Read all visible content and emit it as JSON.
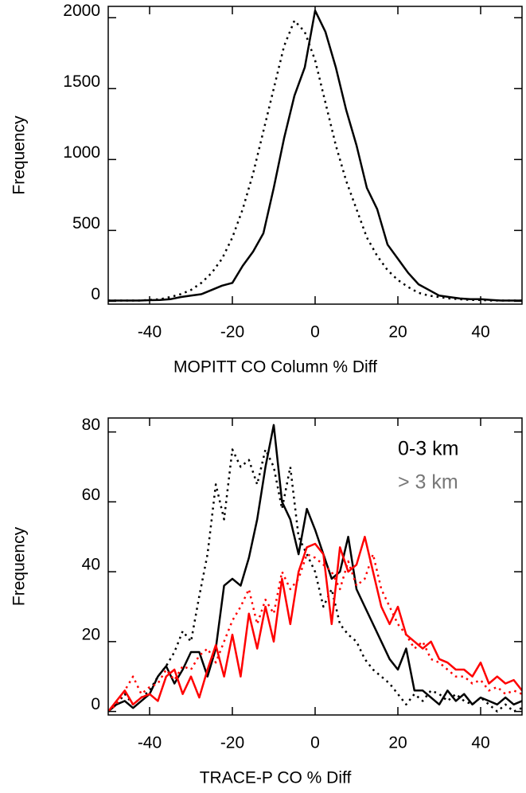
{
  "chart_data": [
    {
      "type": "line",
      "xlabel": "MOPITT CO Column % Diff",
      "ylabel": "Frequency",
      "x": [
        -50,
        -47.5,
        -45,
        -42.5,
        -40,
        -37.5,
        -35,
        -32.5,
        -30,
        -27.5,
        -25,
        -22.5,
        -20,
        -17.5,
        -15,
        -12.5,
        -10,
        -7.5,
        -5,
        -2.5,
        0,
        2.5,
        5,
        7.5,
        10,
        12.5,
        15,
        17.5,
        20,
        22.5,
        25,
        27.5,
        30,
        32.5,
        35,
        37.5,
        40,
        42.5,
        45,
        47.5,
        50
      ],
      "series": [
        {
          "color": "#000000",
          "dash": "solid",
          "values": [
            5,
            5,
            5,
            5,
            8,
            10,
            15,
            30,
            40,
            50,
            80,
            110,
            130,
            250,
            350,
            480,
            800,
            1150,
            1450,
            1650,
            2050,
            1900,
            1650,
            1350,
            1100,
            800,
            650,
            400,
            300,
            200,
            120,
            80,
            40,
            30,
            20,
            15,
            15,
            10,
            5,
            5,
            5
          ]
        },
        {
          "color": "#000000",
          "dash": "dotted",
          "values": [
            5,
            5,
            5,
            5,
            10,
            15,
            30,
            50,
            80,
            130,
            200,
            300,
            450,
            650,
            900,
            1200,
            1500,
            1800,
            1980,
            1900,
            1700,
            1400,
            1100,
            850,
            650,
            450,
            320,
            220,
            150,
            100,
            60,
            40,
            30,
            20,
            15,
            10,
            10,
            5,
            5,
            5,
            5
          ]
        }
      ],
      "xlim": [
        -50,
        50
      ],
      "xticks": [
        -40,
        -20,
        0,
        20,
        40
      ],
      "ylim": [
        -20,
        2080
      ],
      "yticks": [
        0,
        500,
        1000,
        1500,
        2000
      ],
      "grid": false
    },
    {
      "type": "line",
      "xlabel": "TRACE-P CO % Diff",
      "ylabel": "Frequency",
      "annotations": [
        {
          "text": "0-3 km",
          "color": "#000000"
        },
        {
          "text": "> 3 km",
          "color": "#777777"
        }
      ],
      "x": [
        -50,
        -48,
        -46,
        -44,
        -42,
        -40,
        -38,
        -36,
        -34,
        -32,
        -30,
        -28,
        -26,
        -24,
        -22,
        -20,
        -18,
        -16,
        -14,
        -12,
        -10,
        -8,
        -6,
        -4,
        -2,
        0,
        2,
        4,
        6,
        8,
        10,
        12,
        14,
        16,
        18,
        20,
        22,
        24,
        26,
        28,
        30,
        32,
        34,
        36,
        38,
        40,
        42,
        44,
        46,
        48,
        50
      ],
      "series": [
        {
          "color": "#000000",
          "dash": "dotted",
          "values": [
            0,
            2,
            5,
            2,
            4,
            6,
            10,
            13,
            17,
            23,
            20,
            33,
            45,
            65,
            55,
            75,
            70,
            72,
            65,
            75,
            70,
            58,
            70,
            50,
            45,
            40,
            30,
            35,
            25,
            22,
            20,
            15,
            12,
            10,
            8,
            5,
            2,
            5,
            3,
            6,
            5,
            3,
            5,
            3,
            2,
            4,
            2,
            0,
            2,
            0,
            1
          ]
        },
        {
          "color": "#000000",
          "dash": "solid",
          "values": [
            0,
            2,
            3,
            1,
            3,
            5,
            10,
            13,
            8,
            12,
            17,
            17,
            10,
            18,
            36,
            38,
            36,
            44,
            55,
            70,
            82,
            60,
            55,
            45,
            58,
            52,
            45,
            38,
            40,
            50,
            35,
            30,
            25,
            20,
            15,
            12,
            18,
            6,
            6,
            4,
            2,
            6,
            3,
            5,
            2,
            4,
            3,
            2,
            4,
            2,
            3
          ]
        },
        {
          "color": "#ff0000",
          "dash": "dotted",
          "values": [
            0,
            2,
            6,
            10,
            5,
            7,
            8,
            12,
            9,
            13,
            12,
            16,
            18,
            14,
            20,
            26,
            30,
            35,
            25,
            32,
            28,
            40,
            35,
            38,
            45,
            44,
            42,
            40,
            35,
            43,
            36,
            38,
            45,
            35,
            30,
            25,
            22,
            18,
            20,
            15,
            14,
            12,
            10,
            10,
            8,
            9,
            6,
            7,
            5,
            6,
            5
          ]
        },
        {
          "color": "#ff0000",
          "dash": "solid",
          "values": [
            0,
            3,
            6,
            2,
            4,
            5,
            3,
            10,
            12,
            5,
            10,
            4,
            12,
            19,
            10,
            22,
            10,
            28,
            18,
            30,
            20,
            38,
            25,
            40,
            47,
            48,
            45,
            25,
            47,
            40,
            42,
            50,
            40,
            30,
            25,
            30,
            22,
            20,
            18,
            20,
            15,
            14,
            12,
            12,
            10,
            14,
            8,
            10,
            8,
            9,
            6
          ]
        }
      ],
      "xlim": [
        -50,
        50
      ],
      "xticks": [
        -40,
        -20,
        0,
        20,
        40
      ],
      "ylim": [
        -1,
        84
      ],
      "yticks": [
        0,
        20,
        40,
        60,
        80
      ],
      "grid": false
    }
  ]
}
